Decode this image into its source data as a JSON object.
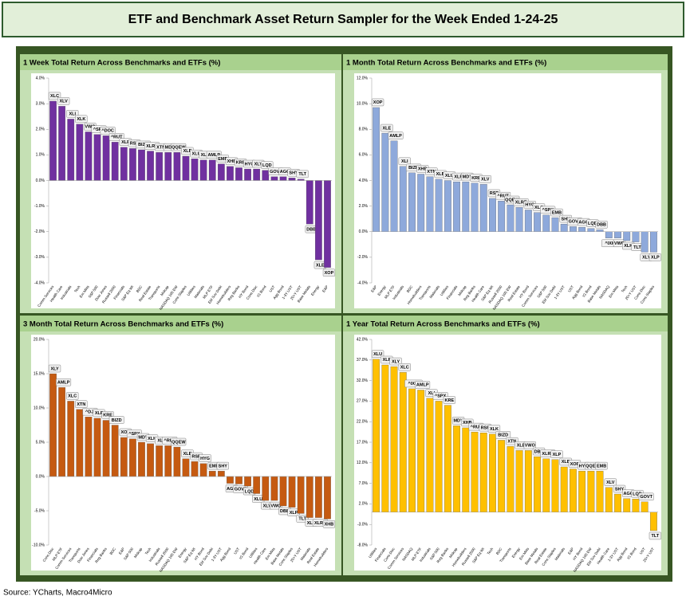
{
  "header": {
    "title": "ETF and Benchmark Asset Return Sampler for the Week Ended 1-24-25"
  },
  "source": "Source: YCharts, Macro4Micro",
  "chart_data": [
    {
      "type": "bar",
      "title": "1 Week Total Return Across Benchmarks and ETFs (%)",
      "color": "#7030a0",
      "grid": false,
      "categories": [
        "Comm Services",
        "Health Care",
        "Industrials",
        "Tech",
        "Em Mkts",
        "S&P 500",
        "Dow Jones",
        "Russell 2000",
        "Financials",
        "S&P Eq Wt",
        "BDC",
        "Real Estate",
        "Transports",
        "Midcap",
        "NASDAQ 100 EW",
        "Cons Staples",
        "Utilities",
        "Materials",
        "MLP ETF",
        "EM Sov Debt",
        "Homebuilders",
        "Reg Banks",
        "HY Bond",
        "Cons Disc",
        "IG Bond",
        "UST",
        "Agg Bond",
        "1-3Y UST",
        "20+Y UST",
        "Base Metals",
        "Energy",
        "E&P"
      ],
      "labels": [
        "XLC",
        "XLV",
        "XLI",
        "XLK",
        "VWO",
        "^SPX",
        "^DOC",
        "^RUT",
        "XLF",
        "RSP",
        "BIZD",
        "XLRE",
        "XTN",
        "MDY",
        "QQEW",
        "XLP",
        "XLU",
        "XLB",
        "AMLP",
        "EMB",
        "XHB",
        "KRE",
        "HYG",
        "XLY",
        "LQD",
        "GOVT",
        "AGG",
        "SHY",
        "TLT",
        "DBB",
        "XLE",
        "XOP"
      ],
      "values": [
        3.1,
        2.9,
        2.4,
        2.2,
        1.9,
        1.8,
        1.75,
        1.5,
        1.3,
        1.25,
        1.2,
        1.15,
        1.1,
        1.1,
        1.1,
        0.95,
        0.85,
        0.8,
        0.8,
        0.65,
        0.55,
        0.5,
        0.45,
        0.45,
        0.4,
        0.15,
        0.15,
        0.1,
        0.05,
        -1.7,
        -3.1,
        -3.4
      ],
      "ylim": [
        -4,
        4
      ],
      "yticks": [
        {
          "value": -4,
          "label": "-4.0%"
        },
        {
          "value": -3,
          "label": "-3.0%"
        },
        {
          "value": -2,
          "label": "-2.0%"
        },
        {
          "value": -1,
          "label": "-1.0%"
        },
        {
          "value": 0,
          "label": "0.0%"
        },
        {
          "value": 1,
          "label": "1.0%"
        },
        {
          "value": 2,
          "label": "2.0%"
        },
        {
          "value": 3,
          "label": "3.0%"
        },
        {
          "value": 4,
          "label": "4.0%"
        }
      ]
    },
    {
      "type": "bar",
      "title": "1 Month Total Return Across Benchmarks and ETFs (%)",
      "color": "#8ea9db",
      "grid": false,
      "categories": [
        "E&P",
        "Energy",
        "MLP ETF",
        "Industrials",
        "BDC",
        "Homebuilders",
        "Transports",
        "Materials",
        "Utilities",
        "Financials",
        "Midcap",
        "Reg Banks",
        "Health Care",
        "S&P Eq Wt",
        "Russell 2000",
        "NASDAQ 100 EW",
        "Real Estate",
        "HY Bond",
        "Comm Services",
        "S&P 500",
        "EM Sov Debt",
        "1-3Y UST",
        "UST",
        "Agg Bond",
        "IG Bond",
        "Base Metals",
        "NASDAQ",
        "Em Mkts",
        "Tech",
        "20+Y UST",
        "Cons Disc",
        "Cons Staples"
      ],
      "labels": [
        "XOP",
        "XLE",
        "AMLP",
        "XLI",
        "BIZD",
        "XHB",
        "XTN",
        "XLB",
        "XLU",
        "XLF",
        "MDY",
        "KRE",
        "XLV",
        "RSP",
        "^RUT",
        "QQEW",
        "XLRE",
        "HYG",
        "XLC",
        "^SPX",
        "EMB",
        "SHY",
        "GOVT",
        "AGG",
        "LQD",
        "DBB",
        "^IXIC",
        "VWO",
        "XLK",
        "TLT",
        "XLY",
        "XLP"
      ],
      "values": [
        9.7,
        7.7,
        7.1,
        5.1,
        4.6,
        4.5,
        4.3,
        4.1,
        4.0,
        3.9,
        3.9,
        3.8,
        3.7,
        2.6,
        2.4,
        2.1,
        1.9,
        1.7,
        1.5,
        1.3,
        1.1,
        0.6,
        0.4,
        0.35,
        0.25,
        0.15,
        -0.5,
        -0.5,
        -0.7,
        -0.8,
        -1.6,
        -1.6
      ],
      "ylim": [
        -4,
        12
      ],
      "yticks": [
        {
          "value": -4,
          "label": "-4.0%"
        },
        {
          "value": -2,
          "label": "-2.0%"
        },
        {
          "value": 0,
          "label": "0.0%"
        },
        {
          "value": 2,
          "label": "2.0%"
        },
        {
          "value": 4,
          "label": "4.0%"
        },
        {
          "value": 6,
          "label": "6.0%"
        },
        {
          "value": 8,
          "label": "8.0%"
        },
        {
          "value": 10,
          "label": "10.0%"
        },
        {
          "value": 12,
          "label": "12.0%"
        }
      ]
    },
    {
      "type": "bar",
      "title": "3 Month Total Return Across Benchmarks and ETFs (%)",
      "color": "#c55a11",
      "grid": false,
      "categories": [
        "Cons Disc",
        "MLP ETF",
        "Comm Services",
        "Transports",
        "Dow Jones",
        "Financials",
        "Reg Banks",
        "BDC",
        "E&P",
        "S&P 500",
        "Midcap",
        "Tech",
        "Industrials",
        "Russell 2000",
        "NASDAQ 100 EW",
        "Energy",
        "S&P Eq Wt",
        "HY Bond",
        "EM Sov Debt",
        "1-3Y UST",
        "Agg Bond",
        "UST",
        "IG Bond",
        "Utilities",
        "Health Care",
        "Em Mkts",
        "Base Metals",
        "Cons Staples",
        "20+Y UST",
        "Materials",
        "Real Estate",
        "Homebuilders"
      ],
      "labels": [
        "XLY",
        "AMLP",
        "XLC",
        "XTN",
        "^DJI",
        "XLF",
        "KRE",
        "BIZD",
        "XOP",
        "^SPX",
        "MDY",
        "XLK",
        "XLI",
        "^RUT",
        "QQEW",
        "XLE",
        "RSP",
        "HYG",
        "EMB",
        "SHY",
        "AGG",
        "GOVT",
        "LQD",
        "XLU",
        "XLV",
        "VWO",
        "DBB",
        "XLP",
        "TLT",
        "XLB",
        "XLRE",
        "XHB"
      ],
      "values": [
        15.0,
        13.0,
        11.0,
        9.8,
        8.7,
        8.5,
        8.2,
        7.5,
        5.7,
        5.5,
        5.0,
        4.8,
        4.5,
        4.5,
        4.3,
        2.6,
        2.2,
        1.9,
        0.8,
        0.8,
        -1.0,
        -1.1,
        -1.4,
        -2.5,
        -3.5,
        -3.5,
        -4.3,
        -4.5,
        -5.4,
        -6.0,
        -6.0,
        -6.2
      ],
      "ylim": [
        -10,
        20
      ],
      "yticks": [
        {
          "value": -10,
          "label": "-10.0%"
        },
        {
          "value": -5,
          "label": "-5.0%"
        },
        {
          "value": 0,
          "label": "0.0%"
        },
        {
          "value": 5,
          "label": "5.0%"
        },
        {
          "value": 10,
          "label": "10.0%"
        },
        {
          "value": 15,
          "label": "15.0%"
        },
        {
          "value": 20,
          "label": "20.0%"
        }
      ]
    },
    {
      "type": "bar",
      "title": "1 Year Total Return Across Benchmarks and ETFs (%)",
      "color": "#ffc000",
      "grid": false,
      "categories": [
        "Utilities",
        "Financials",
        "Cons Disc",
        "Comm Services",
        "NASDAQ",
        "MLP ETF",
        "Industrials",
        "S&P 500",
        "Reg Banks",
        "Midcap",
        "Homebuilders",
        "Russell 2000",
        "S&P Eq Wt",
        "Tech",
        "BDC",
        "Transports",
        "Energy",
        "Em Mkts",
        "Base Metals",
        "Real Estate",
        "Cons Staples",
        "Materials",
        "E&P",
        "HY Bond",
        "NASDAQ 100 EW",
        "EM Sov Debt",
        "Health Care",
        "1-3Y UST",
        "Agg Bond",
        "IG Bond",
        "UST",
        "20+Y UST"
      ],
      "labels": [
        "XLU",
        "XLF",
        "XLY",
        "XLC",
        "^IXIC",
        "AMLP",
        "XLI",
        "^SPX",
        "KRE",
        "MDY",
        "XHB",
        "^RUT",
        "RSP",
        "XLK",
        "BIZD",
        "XTN",
        "XLE",
        "VWO",
        "DBB",
        "XLRE",
        "XLP",
        "XLB",
        "XOP",
        "HYG",
        "QQEW",
        "EMB",
        "XLV",
        "SHY",
        "AGG",
        "LQD",
        "GOVT",
        "TLT"
      ],
      "values": [
        37.2,
        35.8,
        35.4,
        34.0,
        30.0,
        29.7,
        27.7,
        27.0,
        26.0,
        21.0,
        20.5,
        19.5,
        19.3,
        19.0,
        17.5,
        16.0,
        15.0,
        15.0,
        13.5,
        13.0,
        12.8,
        11.0,
        10.5,
        10.0,
        10.0,
        10.0,
        6.0,
        4.4,
        3.3,
        3.2,
        2.5,
        -4.5
      ],
      "ylim": [
        -8,
        42
      ],
      "yticks": [
        {
          "value": -8,
          "label": "-8.0%"
        },
        {
          "value": -3,
          "label": "-3.0%"
        },
        {
          "value": 2,
          "label": "2.0%"
        },
        {
          "value": 7,
          "label": "7.0%"
        },
        {
          "value": 12,
          "label": "12.0%"
        },
        {
          "value": 17,
          "label": "17.0%"
        },
        {
          "value": 22,
          "label": "22.0%"
        },
        {
          "value": 27,
          "label": "27.0%"
        },
        {
          "value": 32,
          "label": "32.0%"
        },
        {
          "value": 37,
          "label": "37.0%"
        },
        {
          "value": 42,
          "label": "42.0%"
        }
      ]
    }
  ]
}
